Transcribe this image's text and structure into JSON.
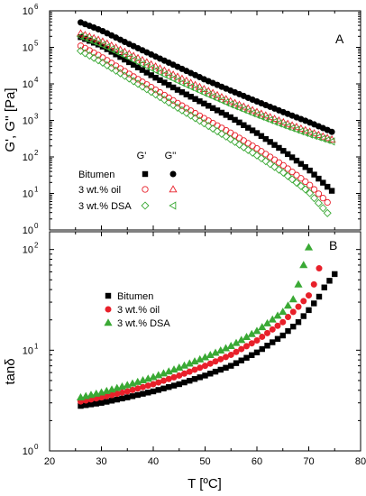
{
  "chart_data": [
    {
      "type": "scatter",
      "panel_label": "A",
      "ylabel": "G', G'' [Pa]",
      "xlabel": "",
      "yscale": "log",
      "xlim": [
        20,
        80
      ],
      "ylim": [
        1,
        1000000
      ],
      "x_ticks": [
        20,
        30,
        40,
        50,
        60,
        70,
        80
      ],
      "y_ticks": [
        1,
        10,
        100,
        1000,
        10000,
        100000,
        1000000
      ],
      "y_tick_labels": [
        {
          "base": "10",
          "exp": "0"
        },
        {
          "base": "10",
          "exp": "1"
        },
        {
          "base": "10",
          "exp": "2"
        },
        {
          "base": "10",
          "exp": "3"
        },
        {
          "base": "10",
          "exp": "4"
        },
        {
          "base": "10",
          "exp": "5"
        },
        {
          "base": "10",
          "exp": "6"
        }
      ],
      "legend": {
        "placement": "lower-left",
        "column_headers": [
          "G'",
          "G''"
        ],
        "rows": [
          {
            "label": "Bitumen",
            "g_prime_marker": "filled-square",
            "g_double_prime_marker": "filled-circle",
            "color": "#000000"
          },
          {
            "label": "3 wt.% oil",
            "g_prime_marker": "open-circle",
            "g_double_prime_marker": "open-triangle-up",
            "color": "#e8202a"
          },
          {
            "label": "3 wt.% DSA",
            "g_prime_marker": "open-diamond",
            "g_double_prime_marker": "open-triangle-left",
            "color": "#3aa935"
          }
        ]
      },
      "series": [
        {
          "name": "Bitumen G'",
          "marker": "filled-square",
          "color": "#000000",
          "x": [
            26,
            30,
            35,
            40,
            45,
            50,
            55,
            60,
            65,
            70,
            75
          ],
          "y": [
            190000,
            110000,
            42000,
            16000,
            6500,
            2800,
            1200,
            450,
            150,
            45,
            10
          ]
        },
        {
          "name": "Bitumen G''",
          "marker": "filled-circle",
          "color": "#000000",
          "x": [
            26,
            30,
            35,
            40,
            45,
            50,
            55,
            60,
            65,
            70,
            75
          ],
          "y": [
            480000,
            290000,
            130000,
            60000,
            28000,
            13000,
            6500,
            3300,
            1700,
            900,
            450
          ]
        },
        {
          "name": "3 wt.% oil G'",
          "marker": "open-circle",
          "color": "#e8202a",
          "x": [
            26,
            30,
            35,
            40,
            45,
            50,
            55,
            60,
            65,
            70,
            74
          ],
          "y": [
            110000,
            55000,
            20000,
            7500,
            2800,
            1100,
            450,
            170,
            60,
            18,
            5
          ]
        },
        {
          "name": "3 wt.% oil G''",
          "marker": "open-triangle-up",
          "color": "#e8202a",
          "x": [
            26,
            30,
            35,
            40,
            45,
            50,
            55,
            60,
            65,
            70,
            75
          ],
          "y": [
            240000,
            150000,
            70000,
            32000,
            15000,
            7000,
            3300,
            1700,
            900,
            500,
            280
          ]
        },
        {
          "name": "3 wt.% DSA G'",
          "marker": "open-diamond",
          "color": "#3aa935",
          "x": [
            26,
            30,
            35,
            40,
            45,
            50,
            55,
            60,
            65,
            70,
            74
          ],
          "y": [
            80000,
            40000,
            15000,
            5600,
            2100,
            800,
            300,
            110,
            38,
            11,
            2.5
          ]
        },
        {
          "name": "3 wt.% DSA G''",
          "marker": "open-triangle-left",
          "color": "#3aa935",
          "x": [
            26,
            30,
            35,
            40,
            45,
            50,
            55,
            60,
            65,
            70,
            75
          ],
          "y": [
            200000,
            120000,
            55000,
            25000,
            11500,
            5500,
            2700,
            1400,
            750,
            420,
            250
          ]
        }
      ]
    },
    {
      "type": "scatter",
      "panel_label": "B",
      "ylabel": "tanδ",
      "xlabel": "T [ºC]",
      "yscale": "log",
      "xlim": [
        20,
        80
      ],
      "ylim": [
        1,
        150
      ],
      "x_ticks": [
        20,
        30,
        40,
        50,
        60,
        70,
        80
      ],
      "y_ticks": [
        1,
        10,
        100
      ],
      "y_tick_labels": [
        {
          "base": "10",
          "exp": "0"
        },
        {
          "base": "10",
          "exp": "1"
        },
        {
          "base": "10",
          "exp": "2"
        }
      ],
      "legend": {
        "placement": "upper-left"
      },
      "series": [
        {
          "name": "Bitumen",
          "marker": "filled-square",
          "color": "#000000",
          "x": [
            26,
            30,
            35,
            40,
            45,
            50,
            55,
            60,
            65,
            68,
            70,
            72,
            73,
            75
          ],
          "y": [
            2.8,
            3.0,
            3.4,
            3.9,
            4.6,
            5.6,
            7.0,
            9.5,
            14,
            19,
            25,
            34,
            42,
            57
          ]
        },
        {
          "name": "3 wt.% oil",
          "marker": "filled-circle",
          "color": "#e8202a",
          "x": [
            26,
            30,
            35,
            40,
            45,
            50,
            55,
            60,
            65,
            68,
            70,
            71,
            72
          ],
          "y": [
            3.1,
            3.4,
            3.9,
            4.6,
            5.6,
            7.0,
            9.0,
            12.5,
            19,
            27,
            35,
            45,
            65
          ]
        },
        {
          "name": "3 wt.% DSA",
          "marker": "filled-triangle-up",
          "color": "#3aa935",
          "x": [
            26,
            30,
            35,
            40,
            45,
            50,
            55,
            60,
            65,
            67,
            68,
            69,
            70
          ],
          "y": [
            3.4,
            3.8,
            4.5,
            5.4,
            6.7,
            8.5,
            11,
            15.5,
            24,
            32,
            45,
            70,
            105
          ]
        }
      ]
    }
  ]
}
